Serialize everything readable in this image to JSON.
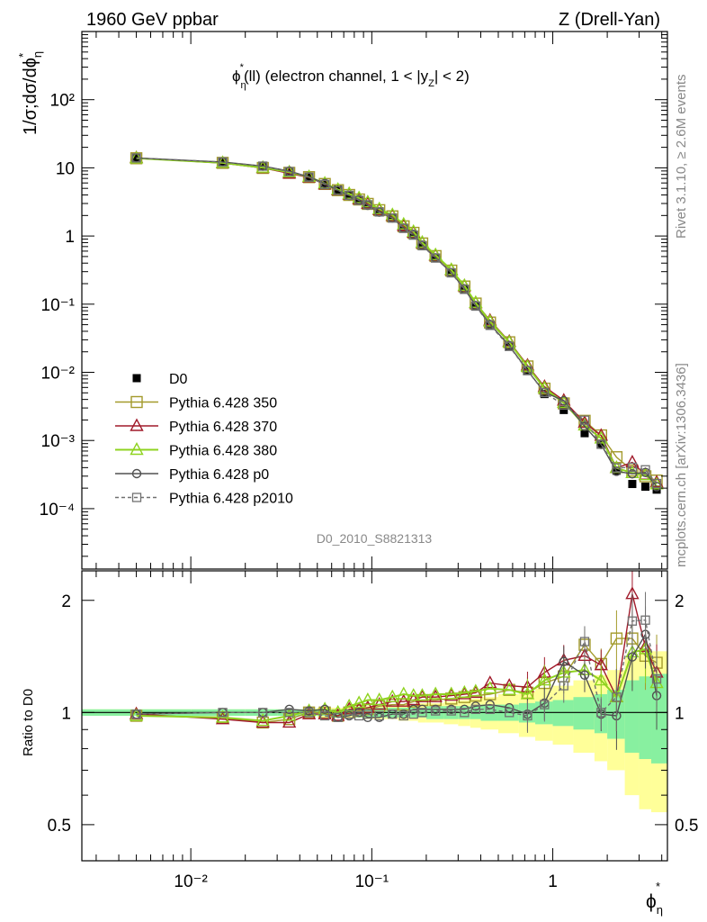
{
  "header": {
    "left": "1960 GeV ppbar",
    "right": "Z (Drell-Yan)"
  },
  "side_labels": {
    "rivet": "Rivet 3.1.10, ≥ 2.6M events",
    "mcplots": "mcplots.cern.ch [arXiv:1306.3436]"
  },
  "analysis_id": "D0_2010_S8821313",
  "colors": {
    "D0": "#000000",
    "350": "#a39a2b",
    "370": "#a01a2a",
    "380": "#8fd320",
    "p0": "#505050",
    "p2010": "#707070",
    "band_inner": "#88f0a0",
    "band_outer": "#ffff99"
  },
  "chart_data": [
    {
      "type": "line",
      "panel": "main",
      "title": "ϕ*η(ll) (electron channel, 1 < |yZ| < 2)",
      "ylabel": "1/σ;dσ/dϕ*η",
      "xlabel": "ϕ*η",
      "xscale": "log",
      "yscale": "log",
      "xlim": [
        0.0025,
        4.3
      ],
      "ylim": [
        1.3e-05,
        1000
      ],
      "y_ticks": [
        "10⁻⁴",
        "10⁻³",
        "10⁻²",
        "10⁻¹",
        "1",
        "10",
        "10²"
      ],
      "x_ticks": [
        "10⁻²",
        "10⁻¹",
        "1"
      ],
      "legend_position": "middle-left",
      "x": [
        0.005,
        0.015,
        0.025,
        0.035,
        0.045,
        0.055,
        0.065,
        0.075,
        0.085,
        0.095,
        0.11,
        0.13,
        0.15,
        0.17,
        0.19,
        0.225,
        0.275,
        0.325,
        0.375,
        0.45,
        0.575,
        0.725,
        0.9,
        1.15,
        1.5,
        1.85,
        2.25,
        2.75,
        3.25,
        3.75
      ],
      "series": [
        {
          "name": "D0",
          "marker": "filled-square",
          "values": [
            14.1,
            12.2,
            10.6,
            8.8,
            7.3,
            5.8,
            4.8,
            4.0,
            3.4,
            2.9,
            2.3,
            1.85,
            1.32,
            1.04,
            0.72,
            0.47,
            0.285,
            0.165,
            0.092,
            0.048,
            0.024,
            0.0108,
            0.0048,
            0.0028,
            0.00128,
            0.00088,
            0.00036,
            0.00023,
            0.00021,
            0.00019
          ]
        },
        {
          "name": "Pythia 6.428 350",
          "marker": "open-square",
          "ratio": [
            0.98,
            0.97,
            0.94,
            0.96,
            1.0,
            1.0,
            0.98,
            1.0,
            1.01,
            1.02,
            1.04,
            1.05,
            1.05,
            1.07,
            1.08,
            1.08,
            1.09,
            1.1,
            1.11,
            1.12,
            1.15,
            1.13,
            1.2,
            1.25,
            1.52,
            1.35,
            1.58,
            1.58,
            1.42,
            1.36
          ]
        },
        {
          "name": "Pythia 6.428 370",
          "marker": "open-triangle",
          "ratio": [
            0.99,
            0.96,
            0.94,
            0.94,
            0.99,
            0.99,
            0.98,
            1.02,
            1.02,
            1.03,
            1.05,
            1.07,
            1.07,
            1.08,
            1.1,
            1.1,
            1.11,
            1.12,
            1.13,
            1.2,
            1.18,
            1.17,
            1.28,
            1.38,
            1.42,
            1.34,
            1.1,
            2.08,
            1.5,
            1.28
          ]
        },
        {
          "name": "Pythia 6.428 380",
          "marker": "open-triangle",
          "ratio": [
            0.98,
            0.97,
            0.95,
            0.98,
            1.01,
            1.02,
            1.0,
            1.04,
            1.06,
            1.08,
            1.08,
            1.1,
            1.12,
            1.11,
            1.11,
            1.12,
            1.12,
            1.13,
            1.14,
            1.16,
            1.15,
            1.12,
            1.22,
            1.28,
            1.3,
            1.22,
            1.1,
            1.45,
            1.48,
            1.2
          ]
        },
        {
          "name": "Pythia 6.428 p0",
          "marker": "open-circle",
          "ratio": [
            0.99,
            1.0,
            1.0,
            1.02,
            1.01,
            1.02,
            0.97,
            0.98,
            1.0,
            0.97,
            0.97,
            0.99,
            0.99,
            1.02,
            1.02,
            1.02,
            1.02,
            1.02,
            1.04,
            1.05,
            1.03,
            0.99,
            1.06,
            1.37,
            1.26,
            0.99,
            0.98,
            1.41,
            1.62,
            1.11
          ]
        },
        {
          "name": "Pythia 6.428 p2010",
          "marker": "open-square-dashed",
          "ratio": [
            0.99,
            1.0,
            1.0,
            1.0,
            1.0,
            0.98,
            0.97,
            0.99,
            0.98,
            0.99,
            0.98,
            0.99,
            0.98,
            0.99,
            1.0,
            1.01,
            1.01,
            1.0,
            1.02,
            1.02,
            1.0,
            0.98,
            1.05,
            1.18,
            1.55,
            1.0,
            1.1,
            1.76,
            1.77,
            1.23
          ]
        }
      ]
    },
    {
      "type": "line",
      "panel": "ratio",
      "ylabel": "Ratio to D0",
      "xscale": "log",
      "yscale": "log",
      "xlim": [
        0.0025,
        4.3
      ],
      "ylim": [
        0.4,
        2.4
      ],
      "y_ticks": [
        "0.5",
        "1",
        "2"
      ],
      "bands": {
        "x_edges": [
          0.0025,
          0.01,
          0.02,
          0.03,
          0.04,
          0.05,
          0.06,
          0.07,
          0.08,
          0.09,
          0.1,
          0.12,
          0.14,
          0.16,
          0.18,
          0.2,
          0.25,
          0.3,
          0.35,
          0.4,
          0.5,
          0.65,
          0.8,
          1.0,
          1.3,
          1.7,
          2.0,
          2.5,
          3.0,
          3.5,
          4.3
        ],
        "inner": [
          0.02,
          0.02,
          0.02,
          0.02,
          0.02,
          0.02,
          0.02,
          0.02,
          0.03,
          0.03,
          0.03,
          0.03,
          0.03,
          0.03,
          0.03,
          0.04,
          0.04,
          0.04,
          0.04,
          0.05,
          0.05,
          0.06,
          0.07,
          0.08,
          0.1,
          0.12,
          0.15,
          0.22,
          0.25,
          0.27
        ],
        "outer": [
          0.02,
          0.02,
          0.02,
          0.02,
          0.02,
          0.03,
          0.03,
          0.03,
          0.03,
          0.04,
          0.04,
          0.04,
          0.05,
          0.05,
          0.06,
          0.06,
          0.07,
          0.08,
          0.09,
          0.1,
          0.12,
          0.14,
          0.16,
          0.18,
          0.22,
          0.26,
          0.3,
          0.4,
          0.45,
          0.46
        ]
      }
    }
  ]
}
